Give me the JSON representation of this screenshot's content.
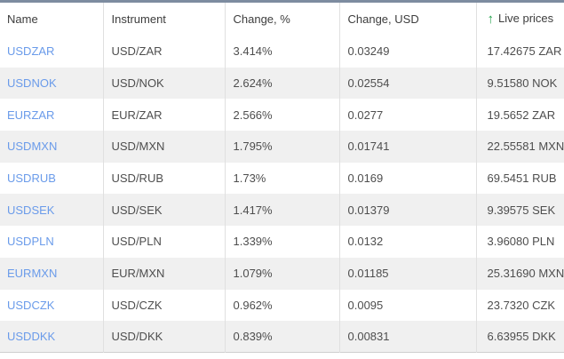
{
  "colors": {
    "top_bar": "#7d8ca0",
    "link_blue": "#6a9bea",
    "arrow_green": "#1fa048",
    "alt_row_bg": "#f0f0f0",
    "separator": "#e0e0e0"
  },
  "table": {
    "columns": [
      {
        "label": "Name"
      },
      {
        "label": "Instrument"
      },
      {
        "label": "Change, %"
      },
      {
        "label": "Change, USD"
      },
      {
        "label": "Live prices",
        "icon": "arrow-up-icon",
        "icon_glyph": "↑"
      }
    ],
    "rows": [
      {
        "name": "USDZAR",
        "instrument": "USD/ZAR",
        "change_pct": "3.414%",
        "change_usd": "0.03249",
        "live_price": "17.42675 ZAR"
      },
      {
        "name": "USDNOK",
        "instrument": "USD/NOK",
        "change_pct": "2.624%",
        "change_usd": "0.02554",
        "live_price": "9.51580 NOK"
      },
      {
        "name": "EURZAR",
        "instrument": "EUR/ZAR",
        "change_pct": "2.566%",
        "change_usd": "0.0277",
        "live_price": "19.5652 ZAR"
      },
      {
        "name": "USDMXN",
        "instrument": "USD/MXN",
        "change_pct": "1.795%",
        "change_usd": "0.01741",
        "live_price": "22.55581 MXN"
      },
      {
        "name": "USDRUB",
        "instrument": "USD/RUB",
        "change_pct": "1.73%",
        "change_usd": "0.0169",
        "live_price": "69.5451 RUB"
      },
      {
        "name": "USDSEK",
        "instrument": "USD/SEK",
        "change_pct": "1.417%",
        "change_usd": "0.01379",
        "live_price": "9.39575 SEK"
      },
      {
        "name": "USDPLN",
        "instrument": "USD/PLN",
        "change_pct": "1.339%",
        "change_usd": "0.0132",
        "live_price": "3.96080 PLN"
      },
      {
        "name": "EURMXN",
        "instrument": "EUR/MXN",
        "change_pct": "1.079%",
        "change_usd": "0.01185",
        "live_price": "25.31690 MXN"
      },
      {
        "name": "USDCZK",
        "instrument": "USD/CZK",
        "change_pct": "0.962%",
        "change_usd": "0.0095",
        "live_price": "23.7320 CZK"
      },
      {
        "name": "USDDKK",
        "instrument": "USD/DKK",
        "change_pct": "0.839%",
        "change_usd": "0.00831",
        "live_price": "6.63955 DKK"
      }
    ]
  }
}
